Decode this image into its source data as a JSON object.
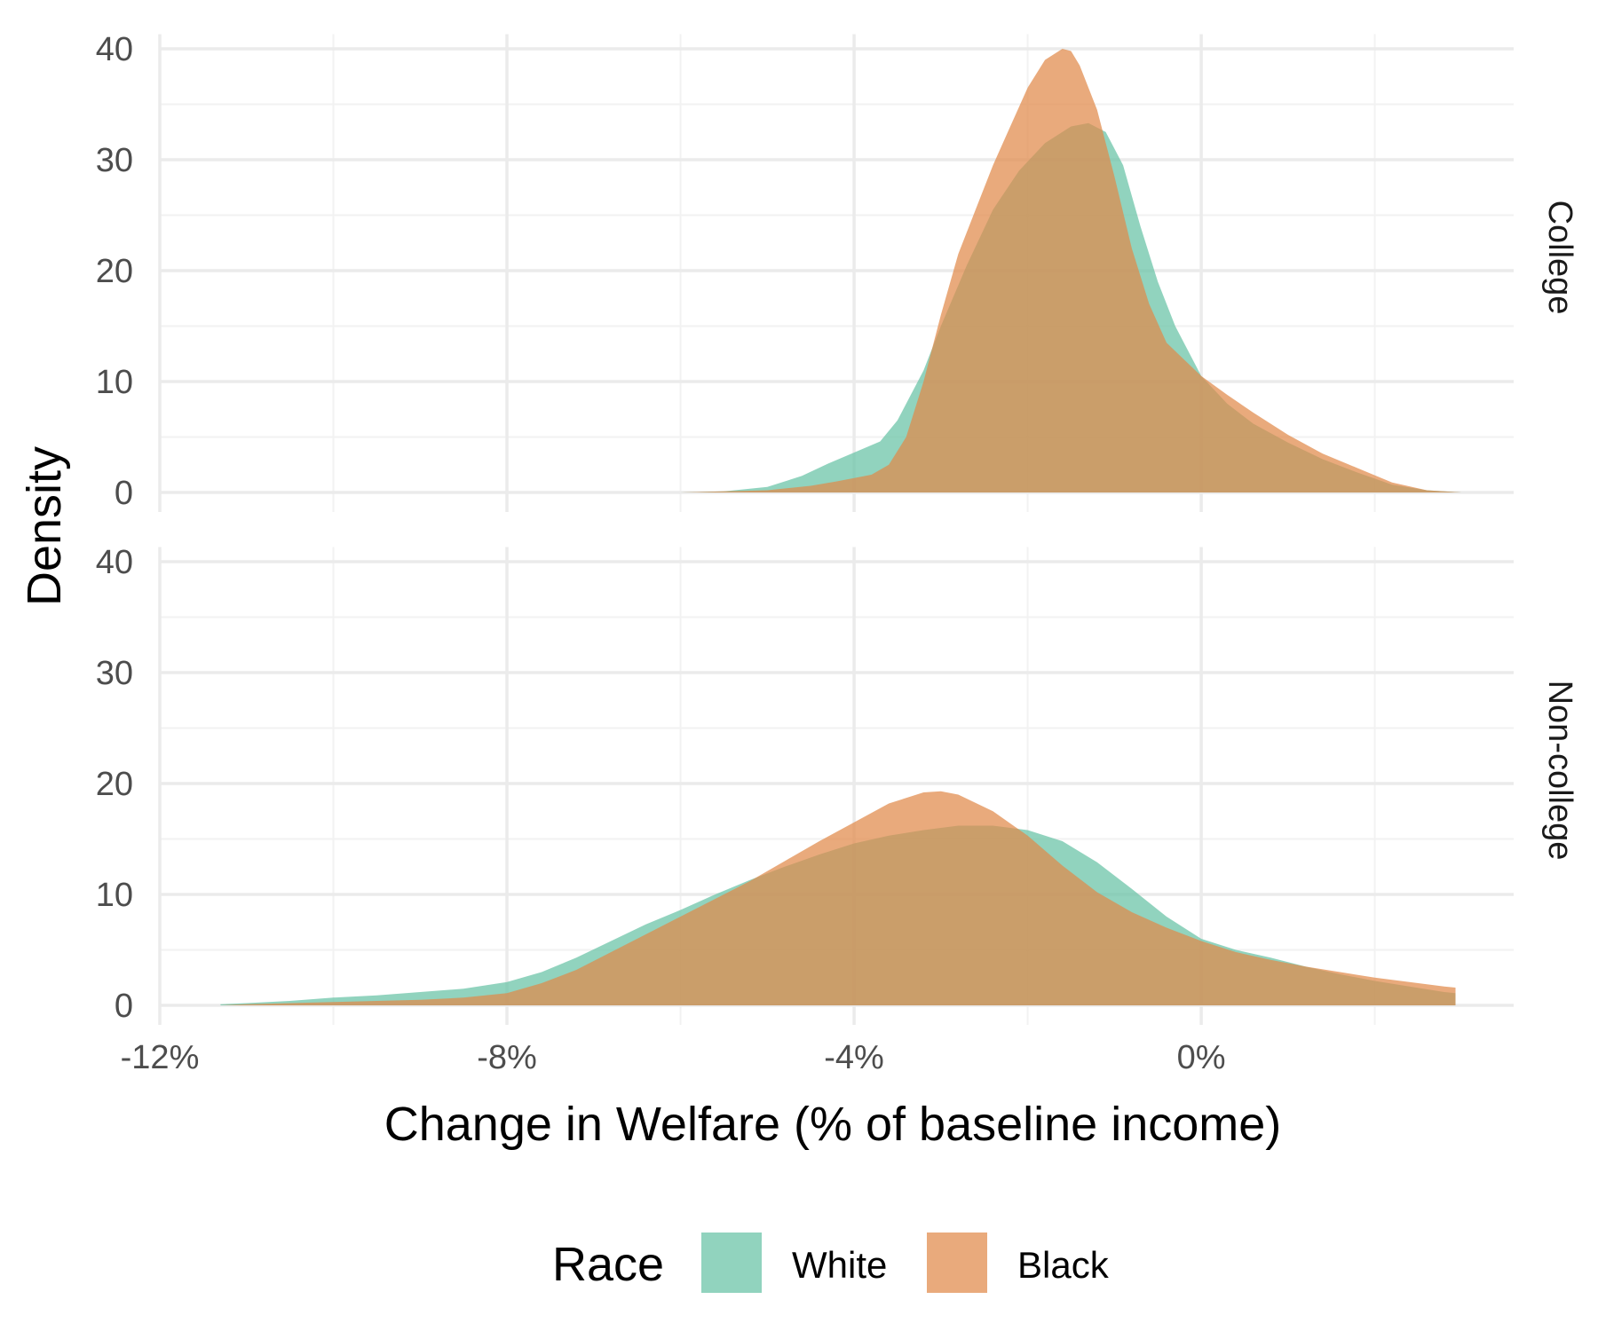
{
  "chart_data": {
    "type": "area",
    "chart_kind": "density (faceted, overlapping)",
    "xlabel": "Change in Welfare (% of baseline income)",
    "ylabel": "Density",
    "x_unit": "percent",
    "xlim": [
      -12,
      3.6
    ],
    "ylim": [
      0,
      41
    ],
    "x_ticks": [
      -12,
      -8,
      -4,
      0
    ],
    "x_tick_labels": [
      "-12%",
      "-8%",
      "-4%",
      "0%"
    ],
    "y_ticks": [
      0,
      10,
      20,
      30,
      40
    ],
    "y_tick_labels": [
      "0",
      "10",
      "20",
      "30",
      "40"
    ],
    "grid": true,
    "legend": {
      "title": "Race",
      "position": "bottom",
      "entries": [
        {
          "label": "White",
          "color": "#66c2a5"
        },
        {
          "label": "Black",
          "color": "#e0894a"
        }
      ]
    },
    "colors": {
      "White": "#66c2a5",
      "Black": "#e0894a"
    },
    "fill_opacity": 0.72,
    "panels": [
      {
        "strip": "College",
        "series": [
          {
            "name": "White",
            "x": [
              -6.0,
              -5.5,
              -5.0,
              -4.6,
              -4.3,
              -4.0,
              -3.7,
              -3.5,
              -3.2,
              -3.0,
              -2.7,
              -2.4,
              -2.1,
              -1.8,
              -1.5,
              -1.3,
              -1.1,
              -0.9,
              -0.7,
              -0.5,
              -0.3,
              0.0,
              0.3,
              0.6,
              1.0,
              1.4,
              1.8,
              2.2,
              2.6,
              3.0
            ],
            "y": [
              0,
              0.1,
              0.5,
              1.5,
              2.6,
              3.6,
              4.6,
              6.5,
              11,
              15,
              20.5,
              25.5,
              29,
              31.5,
              33,
              33.3,
              32.5,
              29.5,
              24,
              19,
              15,
              10.5,
              8,
              6.2,
              4.5,
              3.0,
              1.8,
              0.7,
              0.2,
              0
            ]
          },
          {
            "name": "Black",
            "x": [
              -6.0,
              -5.0,
              -4.5,
              -4.2,
              -4.0,
              -3.8,
              -3.6,
              -3.4,
              -3.2,
              -3.0,
              -2.8,
              -2.6,
              -2.4,
              -2.2,
              -2.0,
              -1.8,
              -1.6,
              -1.5,
              -1.4,
              -1.2,
              -1.0,
              -0.8,
              -0.6,
              -0.4,
              -0.2,
              0.0,
              0.3,
              0.6,
              1.0,
              1.4,
              1.8,
              2.2,
              2.6,
              3.0
            ],
            "y": [
              0,
              0.2,
              0.6,
              1.0,
              1.3,
              1.6,
              2.5,
              5,
              10,
              16,
              21.5,
              25.5,
              29.5,
              33,
              36.5,
              39,
              40,
              39.8,
              38.5,
              34.5,
              28.5,
              22,
              17,
              13.5,
              12,
              10.5,
              8.8,
              7.2,
              5.2,
              3.5,
              2.2,
              0.9,
              0.2,
              0
            ]
          }
        ]
      },
      {
        "strip": "Non-college",
        "series": [
          {
            "name": "White",
            "x": [
              -11.3,
              -11.0,
              -10.5,
              -10.0,
              -9.5,
              -9.0,
              -8.5,
              -8.0,
              -7.6,
              -7.2,
              -6.8,
              -6.4,
              -6.0,
              -5.6,
              -5.2,
              -4.8,
              -4.4,
              -4.0,
              -3.6,
              -3.2,
              -2.8,
              -2.4,
              -2.0,
              -1.6,
              -1.2,
              -0.8,
              -0.4,
              0.0,
              0.4,
              0.8,
              1.2,
              1.6,
              2.0,
              2.4,
              2.8,
              2.93
            ],
            "y": [
              0.1,
              0.2,
              0.4,
              0.7,
              0.9,
              1.2,
              1.5,
              2.1,
              3.0,
              4.3,
              5.8,
              7.3,
              8.6,
              10.0,
              11.3,
              12.5,
              13.6,
              14.6,
              15.3,
              15.8,
              16.2,
              16.2,
              15.8,
              14.8,
              12.9,
              10.5,
              8.0,
              6.0,
              5.0,
              4.3,
              3.5,
              2.8,
              2.2,
              1.7,
              1.2,
              1.1
            ]
          },
          {
            "name": "Black",
            "x": [
              -11.3,
              -11.0,
              -10.5,
              -10.0,
              -9.5,
              -9.0,
              -8.5,
              -8.0,
              -7.6,
              -7.2,
              -6.8,
              -6.4,
              -6.0,
              -5.6,
              -5.2,
              -4.8,
              -4.4,
              -4.0,
              -3.6,
              -3.2,
              -3.0,
              -2.8,
              -2.4,
              -2.0,
              -1.6,
              -1.2,
              -0.8,
              -0.4,
              0.0,
              0.4,
              0.8,
              1.2,
              1.6,
              2.0,
              2.4,
              2.8,
              2.93
            ],
            "y": [
              0,
              0.1,
              0.2,
              0.3,
              0.4,
              0.5,
              0.7,
              1.1,
              2.0,
              3.2,
              4.8,
              6.4,
              8.0,
              9.6,
              11.2,
              13.0,
              14.8,
              16.5,
              18.2,
              19.2,
              19.3,
              19.0,
              17.5,
              15.3,
              12.6,
              10.2,
              8.4,
              7.0,
              5.8,
              4.8,
              4.1,
              3.5,
              3.0,
              2.5,
              2.1,
              1.7,
              1.6
            ]
          }
        ]
      }
    ]
  }
}
